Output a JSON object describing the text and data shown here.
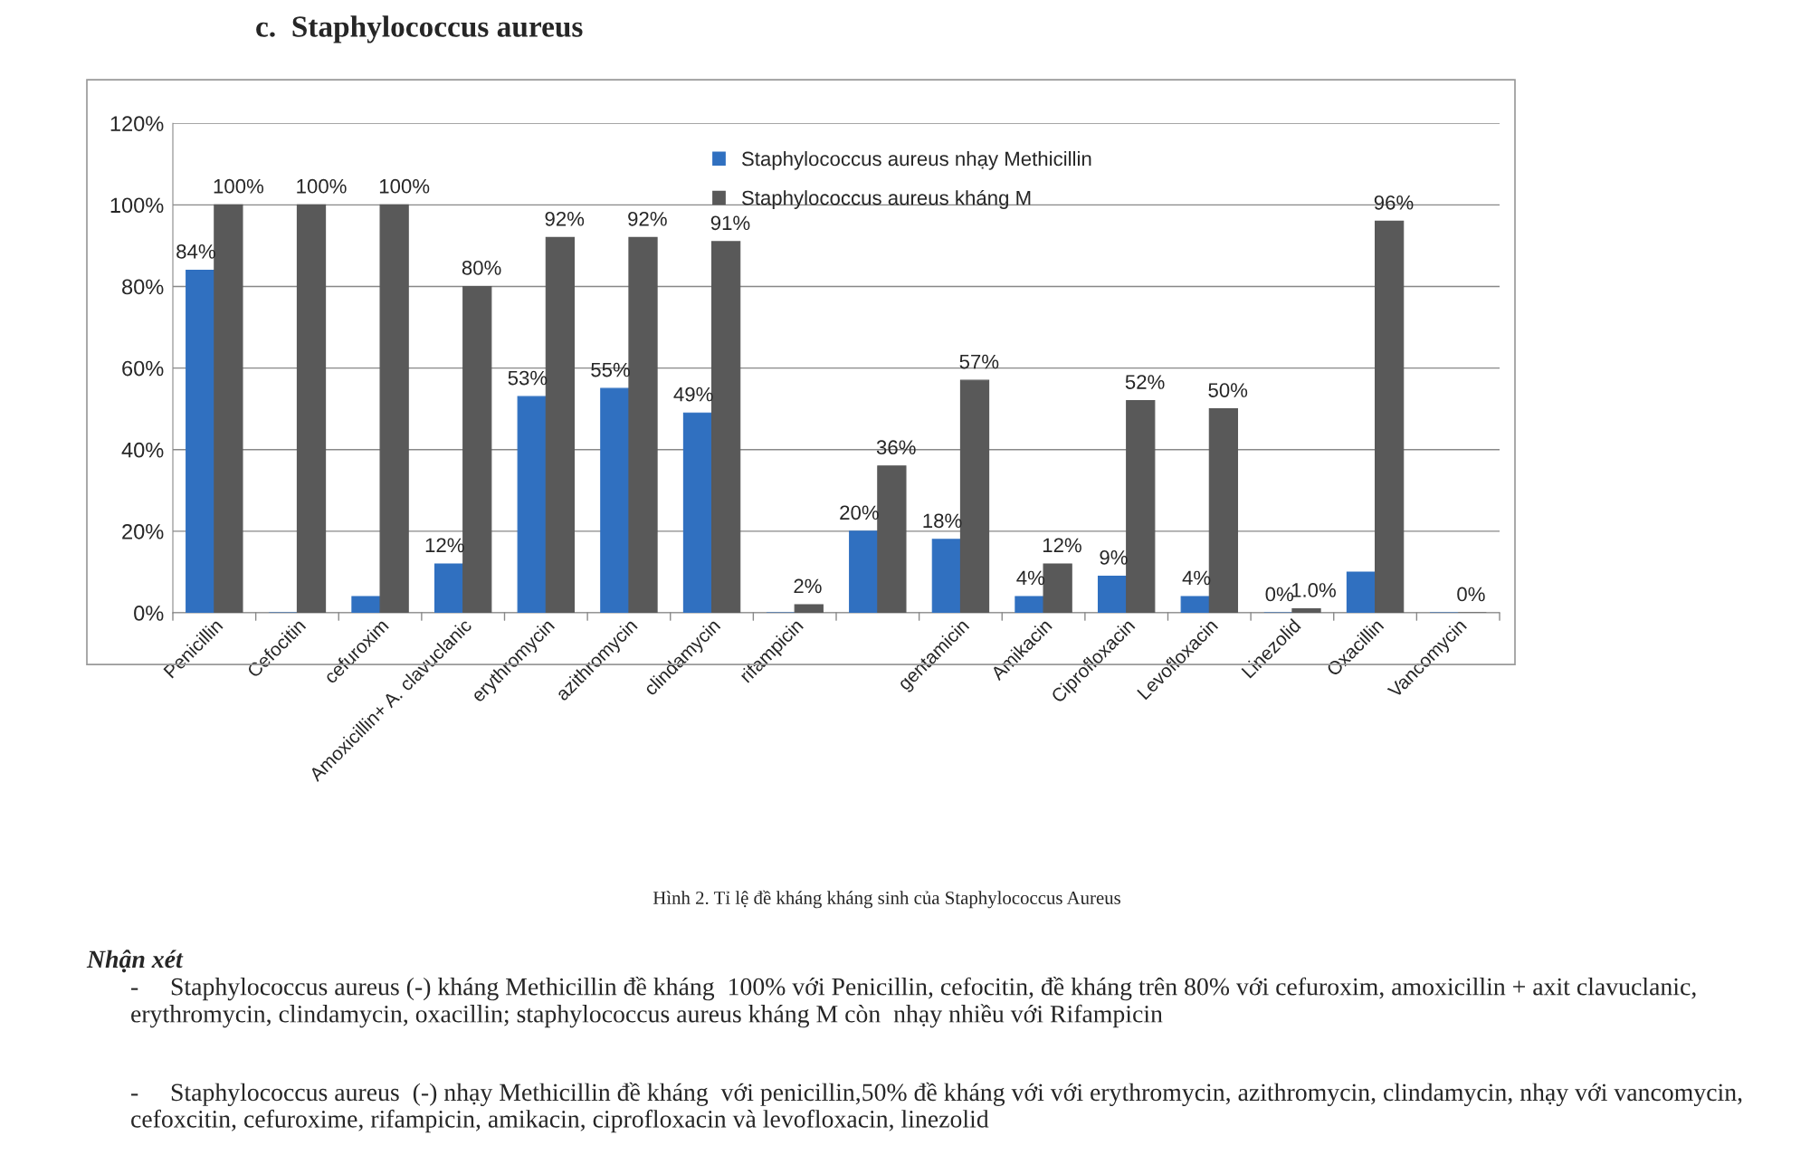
{
  "chart_data": {
    "type": "bar",
    "title": "c.  Staphylococcus aureus",
    "categories": [
      "Penicillin",
      "Cefocitin",
      "cefuroxim",
      "Amoxicillin+ A. clavuclanic",
      "erythromycin",
      "azithromycin",
      "clindamycin",
      "rifampicin",
      null,
      "gentamicin",
      "Amikacin",
      "Ciprofloxacin",
      "Levofloxacin",
      "Linezolid",
      "Oxacillin",
      "Vancomycin"
    ],
    "series": [
      {
        "name": "Staphylococcus aureus nhạy Methicillin",
        "color": "#3070c0",
        "values": [
          84,
          0,
          4,
          12,
          53,
          55,
          49,
          0,
          20,
          18,
          4,
          9,
          4,
          0,
          10,
          0
        ],
        "value_labels": [
          "84%",
          null,
          null,
          "12%",
          "53%",
          "55%",
          "49%",
          null,
          "20%",
          "18%",
          "4%",
          "9%",
          "4%",
          "0%",
          null,
          null
        ]
      },
      {
        "name": "Staphylococcus aureus kháng M",
        "color": "#595959",
        "values": [
          100,
          100,
          100,
          80,
          92,
          92,
          91,
          2,
          36,
          57,
          12,
          52,
          50,
          1.0,
          96,
          0
        ],
        "value_labels": [
          "100%",
          "100%",
          "100%",
          "80%",
          "92%",
          "92%",
          "91%",
          "2%",
          "36%",
          "57%",
          "12%",
          "52%",
          "50%",
          "1.0%",
          "96%",
          "0%"
        ]
      }
    ],
    "ylim": [
      0,
      120
    ],
    "yticks": [
      {
        "value": 0,
        "label": "0%"
      },
      {
        "value": 20,
        "label": "20%"
      },
      {
        "value": 40,
        "label": "40%"
      },
      {
        "value": 60,
        "label": "60%"
      },
      {
        "value": 80,
        "label": "80%"
      },
      {
        "value": 100,
        "label": "100%"
      },
      {
        "value": 120,
        "label": "120%"
      }
    ],
    "grid": "y",
    "legend": "top",
    "annotations": [
      "Hình 2. Tỉ lệ đề kháng kháng sinh của Staphylococcus Aureus",
      "Nhận xét",
      "-     Staphylococcus aureus (-) kháng Methicillin đề kháng  100% với Penicillin, cefocitin, đề kháng trên 80% với cefuroxim, amoxicillin + axit clavuclanic, erythromycin, clindamycin, oxacillin; staphylococcus aureus kháng M còn  nhạy nhiều với Rifampicin",
      "-     Staphylococcus aureus  (-) nhạy Methicillin đề kháng  với penicillin,50% đề kháng với với erythromycin, azithromycin, clindamycin, nhạy với vancomycin, cefoxcitin, cefuroxime, rifampicin, amikacin, ciprofloxacin và levofloxacin, linezolid"
    ]
  }
}
